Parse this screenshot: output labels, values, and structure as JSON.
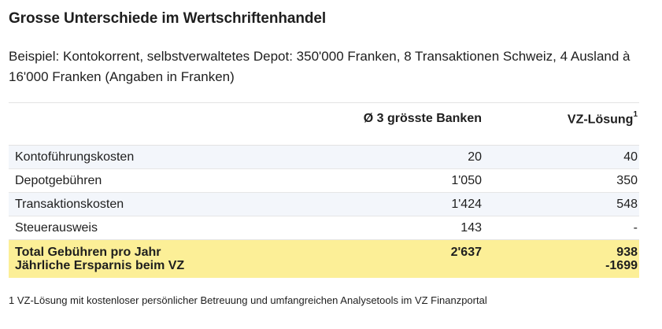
{
  "title": "Grosse Unterschiede im Wertschriftenhandel",
  "subtitle": "Beispiel: Kontokorrent, selbstverwaltetes Depot: 350'000 Franken, 8 Transaktionen Schweiz, 4 Ausland à 16'000 Franken (Angaben in Franken)",
  "table": {
    "headers": {
      "col1": "",
      "col2": "Ø 3 grösste Banken",
      "col3": "VZ-Lösung",
      "col3_sup": "1"
    },
    "rows": [
      {
        "label": "Kontoführungskosten",
        "banks": "20",
        "vz": "40"
      },
      {
        "label": "Depotgebühren",
        "banks": "1'050",
        "vz": "350"
      },
      {
        "label": "Transaktionskosten",
        "banks": "1'424",
        "vz": "548"
      },
      {
        "label": "Steuerausweis",
        "banks": "143",
        "vz": "-"
      }
    ],
    "total": {
      "label1": "Total Gebühren pro Jahr",
      "label2": "Jährliche Ersparnis beim VZ",
      "banks": "2'637",
      "vz": "938",
      "savings": "-1699"
    }
  },
  "footnote": "1 VZ-Lösung mit kostenloser persönlicher Betreuung und umfangreichen Analysetools im VZ Finanzportal",
  "colors": {
    "total_highlight": "#fcef97",
    "row_alt": "#f3f6fb",
    "text": "#1e1e1e"
  }
}
